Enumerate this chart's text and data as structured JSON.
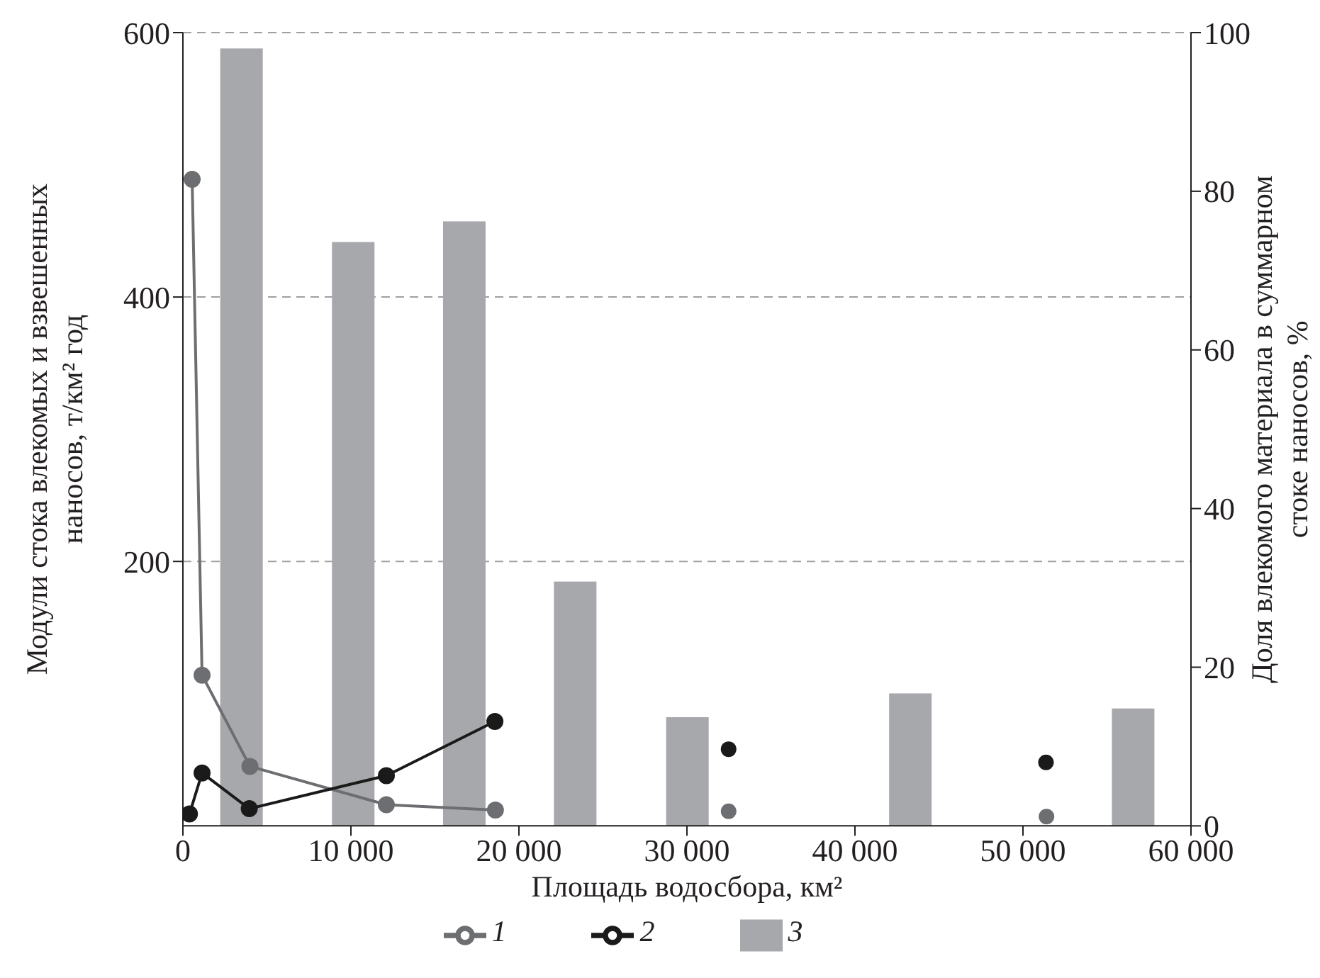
{
  "chart_data": {
    "type": "line",
    "xlabel": "Площадь водосбора, км²",
    "ylabel": "Модули стока влекомых и взвешенных наносов, т/км² год",
    "y2label": "Доля влекомого материала в суммарном стоке наносов, %",
    "xlim": [
      0,
      60000
    ],
    "xticks": [
      0,
      {
        "value": 10000,
        "label": "10 000"
      },
      {
        "value": 20000,
        "label": "20 000"
      },
      {
        "value": 30000,
        "label": "30 000"
      },
      {
        "value": 40000,
        "label": "40 000"
      },
      {
        "value": 50000,
        "label": "50 000"
      },
      {
        "value": 60000,
        "label": "60 000"
      }
    ],
    "ylim": [
      0,
      600
    ],
    "yticks": [
      200,
      400,
      600
    ],
    "y2lim": [
      0,
      100
    ],
    "y2ticks": [
      0,
      20,
      40,
      60,
      80,
      100
    ],
    "grid": "y",
    "legend": "bottom",
    "marker": "circle",
    "series": [
      {
        "name": "1",
        "color": "#6d6e71",
        "x": [
          550,
          1140,
          3990,
          12110,
          18600
        ],
        "values": [
          489,
          114,
          45,
          16,
          12
        ]
      },
      {
        "name": "2",
        "color": "#1a1a1a",
        "x": [
          390,
          1140,
          3950,
          12110,
          18570
        ],
        "values": [
          9,
          40,
          13,
          38,
          79
        ]
      },
      {
        "type": "scatter",
        "color": "#6d6e71",
        "x": [
          32480,
          51400
        ],
        "values": [
          11,
          7
        ]
      },
      {
        "type": "scatter",
        "color": "#1a1a1a",
        "x": [
          32480,
          51370
        ],
        "values": [
          58,
          48
        ]
      },
      {
        "name": "3",
        "type": "bar",
        "axis": "y2",
        "color": "#a7a8ab",
        "x": [
          3490,
          10140,
          16750,
          23350,
          30030,
          43300,
          56560
        ],
        "values": [
          98,
          73.6,
          76.2,
          30.8,
          13.7,
          16.7,
          14.8
        ]
      }
    ]
  }
}
